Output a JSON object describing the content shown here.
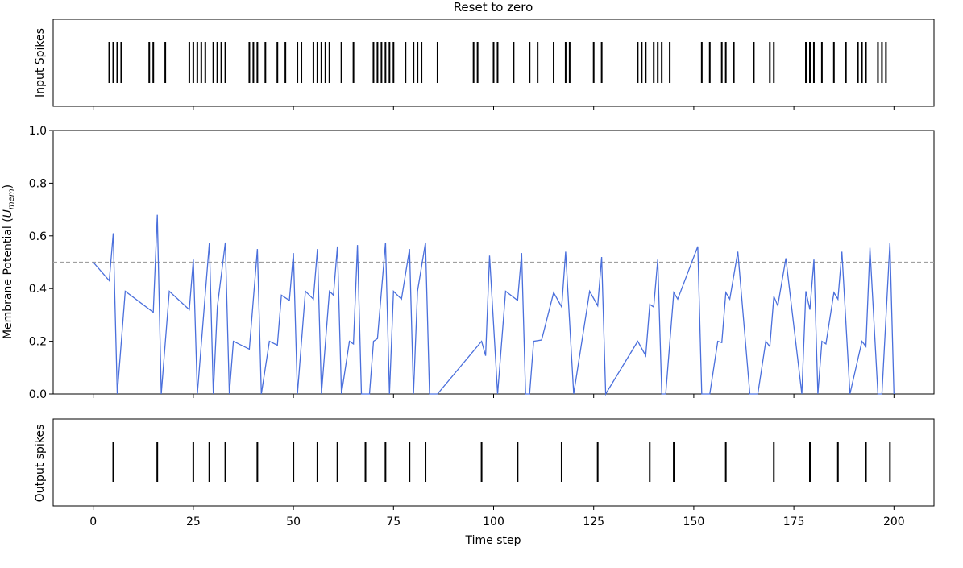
{
  "chart_data": {
    "type": "line",
    "title": "Reset to zero",
    "xlabel": "Time step",
    "xlim": [
      -10,
      210
    ],
    "xticks": [
      0,
      25,
      50,
      75,
      100,
      125,
      150,
      175,
      200
    ],
    "colors": {
      "membrane": "#4a6fdc",
      "threshold": "#a0a0a0",
      "spikes": "#000000"
    },
    "panels": [
      {
        "id": "input",
        "ylabel": "Input Spikes",
        "kind": "raster",
        "spike_times": [
          4,
          5,
          6,
          7,
          14,
          15,
          18,
          24,
          25,
          26,
          27,
          28,
          30,
          31,
          32,
          33,
          39,
          40,
          41,
          43,
          46,
          48,
          51,
          52,
          55,
          56,
          57,
          58,
          59,
          62,
          65,
          70,
          71,
          72,
          73,
          74,
          75,
          78,
          80,
          81,
          82,
          86,
          95,
          96,
          100,
          101,
          105,
          109,
          111,
          115,
          118,
          119,
          125,
          127,
          136,
          137,
          138,
          140,
          141,
          142,
          144,
          152,
          154,
          157,
          158,
          160,
          165,
          169,
          170,
          178,
          179,
          180,
          182,
          185,
          188,
          191,
          192,
          193,
          196,
          197,
          198
        ]
      },
      {
        "id": "membrane",
        "ylabel": "Membrane Potential (U_mem)",
        "kind": "line",
        "ylim": [
          0,
          1.0
        ],
        "yticks": [
          0.0,
          0.2,
          0.4,
          0.6,
          0.8,
          1.0
        ],
        "threshold": 0.5,
        "series": [
          {
            "x": [
              0,
              4,
              5,
              6,
              8,
              15,
              16,
              17,
              19,
              24,
              25,
              26,
              29,
              30,
              31,
              33,
              34,
              35,
              39,
              41,
              42,
              44,
              46,
              47,
              49,
              50,
              51,
              53,
              55,
              56,
              57,
              59,
              60,
              61,
              62,
              64,
              65,
              66,
              67,
              69,
              70,
              71,
              73,
              74,
              75,
              77,
              79,
              80,
              81,
              83,
              84,
              86,
              97,
              98,
              99,
              101,
              103,
              106,
              107,
              108,
              109,
              110,
              112,
              115,
              117,
              118,
              120,
              124,
              126,
              127,
              128,
              136,
              138,
              139,
              140,
              141,
              142,
              143,
              145,
              146,
              151,
              152,
              153,
              154,
              156,
              157,
              158,
              159,
              161,
              164,
              166,
              168,
              169,
              170,
              171,
              173,
              177,
              178,
              179,
              180,
              181,
              182,
              183,
              185,
              186,
              187,
              189,
              192,
              193,
              194,
              196,
              197,
              199,
              200
            ],
            "y": [
              0.5,
              0.43,
              0.61,
              0.0,
              0.39,
              0.31,
              0.68,
              0.0,
              0.39,
              0.32,
              0.51,
              0.0,
              0.575,
              0.0,
              0.33,
              0.575,
              0.0,
              0.2,
              0.17,
              0.55,
              0.0,
              0.2,
              0.185,
              0.375,
              0.355,
              0.535,
              0.0,
              0.39,
              0.36,
              0.55,
              0.0,
              0.39,
              0.375,
              0.56,
              0.0,
              0.2,
              0.19,
              0.565,
              0.0,
              0.0,
              0.2,
              0.21,
              0.575,
              0.0,
              0.39,
              0.36,
              0.55,
              0.0,
              0.39,
              0.575,
              0.0,
              0.0,
              0.2,
              0.145,
              0.525,
              0.0,
              0.39,
              0.355,
              0.535,
              0.0,
              0.0,
              0.2,
              0.205,
              0.385,
              0.33,
              0.54,
              0.0,
              0.39,
              0.335,
              0.52,
              0.0,
              0.2,
              0.145,
              0.34,
              0.33,
              0.51,
              0.0,
              0.0,
              0.385,
              0.36,
              0.56,
              0.0,
              0.0,
              0.0,
              0.2,
              0.195,
              0.385,
              0.36,
              0.54,
              0.0,
              0.0,
              0.2,
              0.18,
              0.37,
              0.335,
              0.515,
              0.0,
              0.39,
              0.32,
              0.51,
              0.0,
              0.2,
              0.19,
              0.385,
              0.36,
              0.54,
              0.0,
              0.2,
              0.18,
              0.555,
              0.0,
              0.0,
              0.575,
              0.0
            ]
          }
        ]
      },
      {
        "id": "output",
        "ylabel": "Output spikes",
        "kind": "raster",
        "spike_times": [
          5,
          16,
          25,
          29,
          33,
          41,
          50,
          56,
          61,
          68,
          73,
          79,
          83,
          97,
          106,
          117,
          126,
          139,
          145,
          158,
          170,
          179,
          186,
          193,
          199
        ]
      }
    ]
  }
}
